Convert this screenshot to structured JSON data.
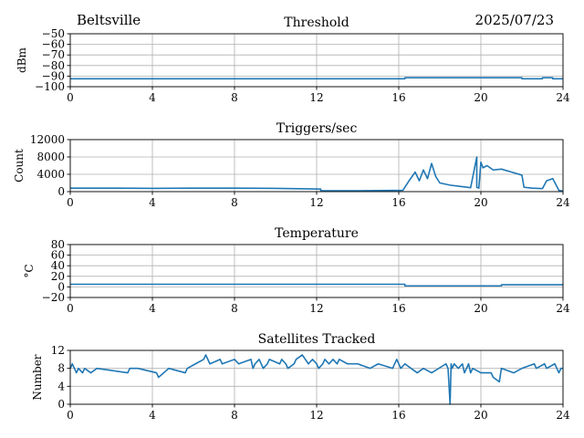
{
  "header": {
    "station": "Beltsville",
    "date": "2025/07/23"
  },
  "colors": {
    "line": "#1f77b4",
    "grid": "#b0b0b0",
    "axis": "#000000"
  },
  "chart_data": [
    {
      "type": "line",
      "title": "Threshold",
      "xlabel": "",
      "ylabel": "dBm",
      "xlim": [
        0,
        24
      ],
      "ylim": [
        -100,
        -50
      ],
      "xticks": [
        0,
        4,
        8,
        12,
        16,
        20,
        24
      ],
      "yticks": [
        -100,
        -90,
        -80,
        -70,
        -60,
        -50
      ],
      "grid": true,
      "series": [
        {
          "x": [
            0,
            16.3,
            16.3,
            22.0,
            22.0,
            23.0,
            23.0,
            23.5,
            23.5,
            24
          ],
          "y": [
            -92.5,
            -92.5,
            -91.5,
            -91.5,
            -92.5,
            -92.5,
            -91.5,
            -91.5,
            -92.5,
            -92.5
          ]
        }
      ]
    },
    {
      "type": "line",
      "title": "Triggers/sec",
      "xlabel": "",
      "ylabel": "Count",
      "xlim": [
        0,
        24
      ],
      "ylim": [
        0,
        12000
      ],
      "xticks": [
        0,
        4,
        8,
        12,
        16,
        20,
        24
      ],
      "yticks": [
        0,
        4000,
        8000,
        12000
      ],
      "grid": true,
      "series": [
        {
          "x": [
            0,
            2,
            4,
            6,
            8,
            10,
            12.2,
            12.2,
            14,
            16.2,
            16.5,
            16.8,
            17.0,
            17.2,
            17.4,
            17.6,
            17.8,
            18.0,
            18.5,
            19.0,
            19.5,
            19.8,
            19.8,
            19.9,
            20.0,
            20.1,
            20.3,
            20.6,
            21.0,
            21.5,
            22.0,
            22.1,
            22.5,
            23.0,
            23.2,
            23.5,
            23.8,
            24
          ],
          "y": [
            800,
            800,
            750,
            800,
            800,
            750,
            600,
            200,
            200,
            300,
            2500,
            4500,
            2500,
            5000,
            3000,
            6500,
            3500,
            2000,
            1500,
            1200,
            900,
            8000,
            1000,
            800,
            6800,
            5500,
            6000,
            5000,
            5200,
            4500,
            3800,
            1000,
            800,
            700,
            2500,
            3000,
            300,
            100
          ]
        }
      ]
    },
    {
      "type": "line",
      "title": "Temperature",
      "xlabel": "",
      "ylabel": "°C",
      "xlim": [
        0,
        24
      ],
      "ylim": [
        -20,
        80
      ],
      "xticks": [
        0,
        4,
        8,
        12,
        16,
        20,
        24
      ],
      "yticks": [
        -20,
        0,
        20,
        40,
        60,
        80
      ],
      "grid": true,
      "series": [
        {
          "x": [
            0,
            16.3,
            16.3,
            21.0,
            21.0,
            24
          ],
          "y": [
            5,
            5,
            2,
            2,
            4,
            4
          ]
        }
      ]
    },
    {
      "type": "line",
      "title": "Satellites Tracked",
      "xlabel": "",
      "ylabel": "Number",
      "xlim": [
        0,
        24
      ],
      "ylim": [
        0,
        12
      ],
      "xticks": [
        0,
        4,
        8,
        12,
        16,
        20,
        24
      ],
      "yticks": [
        0,
        4,
        8,
        12
      ],
      "grid": true,
      "series": [
        {
          "x": [
            0,
            0.1,
            0.2,
            0.3,
            0.4,
            0.6,
            0.7,
            1.0,
            1.3,
            2.8,
            2.9,
            3.3,
            4.2,
            4.3,
            4.8,
            5.6,
            5.7,
            6.1,
            6.5,
            6.6,
            6.8,
            7.3,
            7.4,
            8.0,
            8.2,
            8.8,
            8.9,
            9.0,
            9.2,
            9.4,
            9.6,
            9.7,
            10.2,
            10.3,
            10.5,
            10.6,
            10.9,
            11.0,
            11.3,
            11.6,
            11.8,
            12.0,
            12.1,
            12.3,
            12.4,
            12.6,
            12.8,
            13.0,
            13.1,
            13.5,
            14.0,
            14.6,
            15.0,
            15.7,
            15.9,
            16.1,
            16.3,
            16.6,
            16.9,
            17.2,
            17.6,
            18.3,
            18.4,
            18.5,
            18.55,
            18.6,
            18.7,
            18.9,
            19.1,
            19.2,
            19.3,
            19.4,
            19.5,
            19.6,
            20.0,
            20.5,
            20.6,
            20.9,
            21.0,
            21.6,
            22.0,
            22.6,
            22.7,
            23.1,
            23.2,
            23.6,
            23.7,
            23.8,
            23.9,
            24
          ],
          "y": [
            8,
            9,
            8,
            7,
            8,
            7,
            8,
            7,
            8,
            7,
            8,
            8,
            7,
            6,
            8,
            7,
            8,
            9,
            10,
            11,
            9,
            10,
            9,
            10,
            9,
            10,
            8,
            9,
            10,
            8,
            9,
            10,
            9,
            10,
            9,
            8,
            9,
            10,
            11,
            9,
            10,
            9,
            8,
            9,
            10,
            9,
            10,
            9,
            10,
            9,
            9,
            8,
            9,
            8,
            10,
            8,
            9,
            8,
            7,
            8,
            7,
            9,
            8,
            0,
            9,
            8,
            9,
            8,
            9,
            7,
            8,
            9,
            7,
            8,
            7,
            7,
            6,
            5,
            8,
            7,
            8,
            9,
            8,
            9,
            8,
            9,
            8,
            7,
            8,
            8
          ]
        }
      ]
    }
  ]
}
